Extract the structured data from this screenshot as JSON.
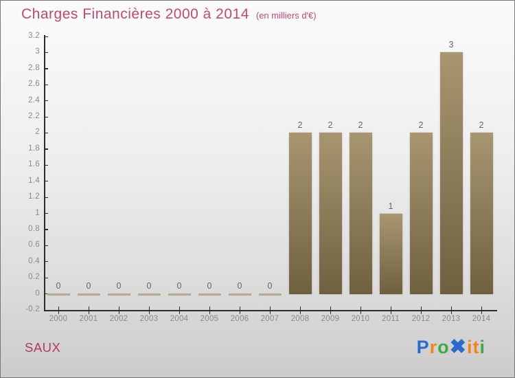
{
  "chart_data": {
    "type": "bar",
    "title": "Charges Financières 2000 à 2014",
    "subtitle": "(en milliers d'€)",
    "categories": [
      "2000",
      "2001",
      "2002",
      "2003",
      "2004",
      "2005",
      "2006",
      "2007",
      "2008",
      "2009",
      "2010",
      "2011",
      "2012",
      "2013",
      "2014"
    ],
    "values": [
      0,
      0,
      0,
      0,
      0,
      0,
      0,
      0,
      2,
      2,
      2,
      1,
      2,
      3,
      2
    ],
    "xlabel": "",
    "ylabel": "",
    "ylim": [
      -0.2,
      3.2
    ],
    "ytick_step": 0.2,
    "grid": false,
    "legend_position": "none",
    "value_labels_shown": true
  },
  "footer": {
    "company": "SAUX",
    "logo_letters": [
      {
        "char": "P",
        "color": "#2a6bcc"
      },
      {
        "char": "r",
        "color": "#f1861b"
      },
      {
        "char": "o",
        "color": "#3ca945"
      },
      {
        "char": "✖",
        "color": "#2a6bcc"
      },
      {
        "char": "i",
        "color": "#f1861b"
      },
      {
        "char": "t",
        "color": "#f1861b"
      },
      {
        "char": "i",
        "color": "#3ca945"
      }
    ]
  },
  "colors": {
    "title_text": "#c4476f",
    "company_text": "#b23a5f",
    "bar_top": "#a89670",
    "bar_bottom": "#6f6040",
    "zero_dash": "#b5a98f",
    "axis_line": "#2b2b2b",
    "tick_label": "#8a8a8a",
    "value_label": "#656565"
  }
}
